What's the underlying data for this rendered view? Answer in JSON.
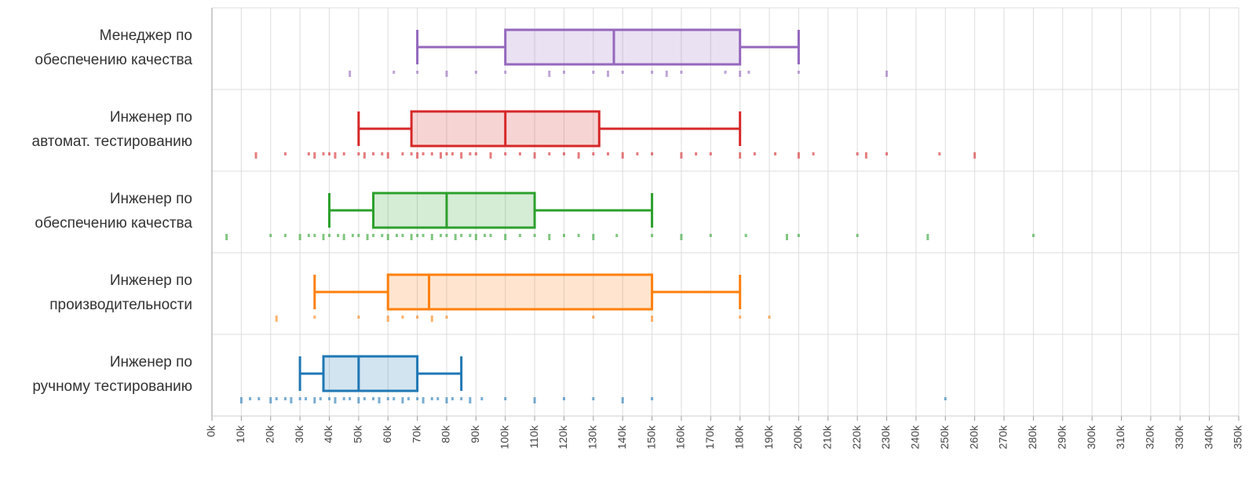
{
  "chart_data": {
    "type": "boxplot",
    "orientation": "horizontal",
    "title": "",
    "xlabel": "",
    "ylabel": "",
    "xlim": [
      0,
      350000
    ],
    "x_tick_step": 10000,
    "x_ticks": [
      "0k",
      "10k",
      "20k",
      "30k",
      "40k",
      "50k",
      "60k",
      "70k",
      "80k",
      "90k",
      "100k",
      "110k",
      "120k",
      "130k",
      "140k",
      "150k",
      "160k",
      "170k",
      "180k",
      "190k",
      "200k",
      "210k",
      "220k",
      "230k",
      "240k",
      "250k",
      "260k",
      "270k",
      "280k",
      "290k",
      "300k",
      "310k",
      "320k",
      "330k",
      "340k",
      "350k"
    ],
    "grid": true,
    "series": [
      {
        "name_lines": [
          "Менеджер по",
          "обеспечению качества"
        ],
        "color": "#9467bd",
        "whisker_low": 70000,
        "q1": 100000,
        "median": 137000,
        "q3": 180000,
        "whisker_high": 200000,
        "points": [
          47000,
          62000,
          70000,
          80000,
          90000,
          100000,
          115000,
          120000,
          130000,
          135000,
          140000,
          150000,
          155000,
          160000,
          175000,
          180000,
          183000,
          200000,
          230000
        ]
      },
      {
        "name_lines": [
          "Инженер по",
          "автомат. тестированию"
        ],
        "color": "#d62728",
        "whisker_low": 50000,
        "q1": 68000,
        "median": 100000,
        "q3": 132000,
        "whisker_high": 180000,
        "points": [
          15000,
          25000,
          33000,
          35000,
          38000,
          40000,
          42000,
          45000,
          50000,
          52000,
          55000,
          58000,
          60000,
          65000,
          68000,
          70000,
          72000,
          75000,
          78000,
          80000,
          82000,
          85000,
          88000,
          90000,
          95000,
          100000,
          105000,
          110000,
          115000,
          120000,
          125000,
          130000,
          135000,
          140000,
          145000,
          150000,
          160000,
          165000,
          170000,
          180000,
          185000,
          192000,
          200000,
          205000,
          220000,
          223000,
          230000,
          248000,
          260000
        ]
      },
      {
        "name_lines": [
          "Инженер по",
          "обеспечению качества"
        ],
        "color": "#2ca02c",
        "whisker_low": 40000,
        "q1": 55000,
        "median": 80000,
        "q3": 110000,
        "whisker_high": 150000,
        "points": [
          5000,
          20000,
          25000,
          30000,
          33000,
          35000,
          38000,
          40000,
          43000,
          45000,
          48000,
          50000,
          53000,
          55000,
          58000,
          60000,
          63000,
          65000,
          68000,
          70000,
          72000,
          75000,
          78000,
          80000,
          83000,
          85000,
          88000,
          90000,
          93000,
          95000,
          100000,
          105000,
          110000,
          115000,
          120000,
          125000,
          130000,
          138000,
          150000,
          160000,
          170000,
          182000,
          196000,
          200000,
          220000,
          244000,
          280000
        ]
      },
      {
        "name_lines": [
          "Инженер по",
          "производительности"
        ],
        "color": "#ff7f0e",
        "whisker_low": 35000,
        "q1": 60000,
        "median": 74000,
        "q3": 150000,
        "whisker_high": 180000,
        "points": [
          22000,
          35000,
          50000,
          60000,
          65000,
          70000,
          75000,
          80000,
          130000,
          150000,
          180000,
          190000
        ]
      },
      {
        "name_lines": [
          "Инженер по",
          "ручному тестированию"
        ],
        "color": "#1f77b4",
        "whisker_low": 30000,
        "q1": 38000,
        "median": 50000,
        "q3": 70000,
        "whisker_high": 85000,
        "points": [
          10000,
          13000,
          16000,
          20000,
          22000,
          25000,
          27000,
          30000,
          32000,
          35000,
          37000,
          40000,
          42000,
          45000,
          47000,
          50000,
          52000,
          55000,
          57000,
          60000,
          62000,
          65000,
          67000,
          70000,
          72000,
          75000,
          77000,
          80000,
          82000,
          85000,
          88000,
          92000,
          100000,
          110000,
          120000,
          130000,
          140000,
          150000,
          250000
        ]
      }
    ]
  }
}
